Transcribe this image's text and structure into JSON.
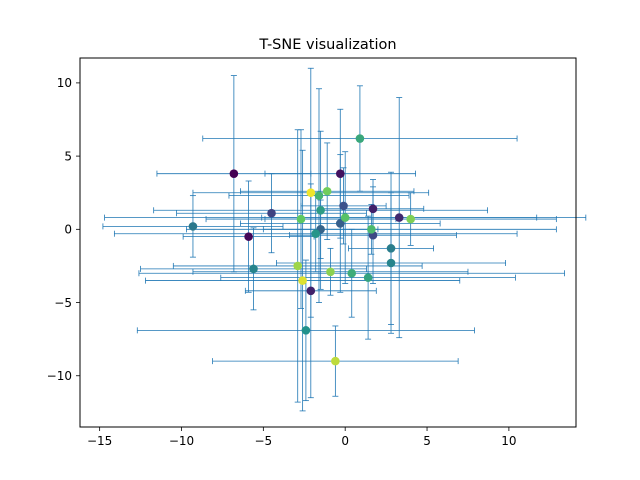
{
  "chart_data": {
    "type": "scatter",
    "title": "T-SNE visualization",
    "xlabel": "",
    "ylabel": "",
    "xlim": [
      -16.2,
      14.1
    ],
    "ylim": [
      -13.5,
      11.7
    ],
    "xticks": [
      -15,
      -10,
      -5,
      0,
      5,
      10
    ],
    "yticks": [
      -10,
      -5,
      0,
      5,
      10
    ],
    "grid": false,
    "legend": "none",
    "errorbar_color": "#1f77b4",
    "colormap": "viridis",
    "points": [
      {
        "x": -6.8,
        "y": 3.8,
        "xerr": 4.7,
        "yerr": 6.7,
        "c": 0.0
      },
      {
        "x": -5.9,
        "y": -0.5,
        "xerr": 4.0,
        "yerr": 3.8,
        "c": 0.02
      },
      {
        "x": -0.3,
        "y": 3.8,
        "xerr": 4.6,
        "yerr": 4.4,
        "c": 0.05
      },
      {
        "x": 1.7,
        "y": 1.4,
        "xerr": 3.1,
        "yerr": 2.0,
        "c": 0.1
      },
      {
        "x": -2.1,
        "y": -4.2,
        "xerr": 4.0,
        "yerr": 7.3,
        "c": 0.1
      },
      {
        "x": 3.3,
        "y": 0.8,
        "xerr": 8.4,
        "yerr": 8.2,
        "c": 0.12
      },
      {
        "x": -4.5,
        "y": 1.1,
        "xerr": 5.8,
        "yerr": 2.7,
        "c": 0.2
      },
      {
        "x": 1.7,
        "y": -0.4,
        "xerr": 5.1,
        "yerr": 3.3,
        "c": 0.22
      },
      {
        "x": -0.1,
        "y": 1.6,
        "xerr": 2.6,
        "yerr": 2.6,
        "c": 0.25
      },
      {
        "x": -0.3,
        "y": 0.4,
        "xerr": 6.1,
        "yerr": 4.7,
        "c": 0.3
      },
      {
        "x": -1.5,
        "y": 0.0,
        "xerr": 3.5,
        "yerr": 2.0,
        "c": 0.32
      },
      {
        "x": -9.3,
        "y": 0.2,
        "xerr": 5.5,
        "yerr": 2.1,
        "c": 0.4
      },
      {
        "x": 2.8,
        "y": -1.3,
        "xerr": 2.6,
        "yerr": 5.2,
        "c": 0.42
      },
      {
        "x": 2.8,
        "y": -2.3,
        "xerr": 7.0,
        "yerr": 4.8,
        "c": 0.45
      },
      {
        "x": -5.6,
        "y": -2.7,
        "xerr": 6.9,
        "yerr": 2.8,
        "c": 0.45
      },
      {
        "x": -2.4,
        "y": -6.9,
        "xerr": 10.3,
        "yerr": 4.8,
        "c": 0.5
      },
      {
        "x": -1.8,
        "y": -0.3,
        "xerr": 12.3,
        "yerr": 2.6,
        "c": 0.52
      },
      {
        "x": -1.5,
        "y": 1.3,
        "xerr": 10.2,
        "yerr": 5.4,
        "c": 0.55
      },
      {
        "x": 1.4,
        "y": -3.3,
        "xerr": 9.0,
        "yerr": 4.2,
        "c": 0.58
      },
      {
        "x": 0.9,
        "y": 6.2,
        "xerr": 9.6,
        "yerr": 3.6,
        "c": 0.6
      },
      {
        "x": 0.4,
        "y": -3.0,
        "xerr": 13.0,
        "yerr": 3.0,
        "c": 0.62
      },
      {
        "x": -1.6,
        "y": 2.3,
        "xerr": 5.5,
        "yerr": 7.3,
        "c": 0.65
      },
      {
        "x": 1.6,
        "y": 0.0,
        "xerr": 11.3,
        "yerr": 1.7,
        "c": 0.68
      },
      {
        "x": 0.0,
        "y": 0.8,
        "xerr": 14.7,
        "yerr": 4.5,
        "c": 0.72
      },
      {
        "x": -2.7,
        "y": 0.7,
        "xerr": 5.8,
        "yerr": 6.1,
        "c": 0.75
      },
      {
        "x": -1.1,
        "y": 2.6,
        "xerr": 5.3,
        "yerr": 3.3,
        "c": 0.78
      },
      {
        "x": 4.0,
        "y": 0.7,
        "xerr": 8.9,
        "yerr": 1.8,
        "c": 0.8
      },
      {
        "x": -0.9,
        "y": -2.9,
        "xerr": 8.4,
        "yerr": 1.6,
        "c": 0.82
      },
      {
        "x": -2.9,
        "y": -2.5,
        "xerr": 7.6,
        "yerr": 9.3,
        "c": 0.85
      },
      {
        "x": -0.6,
        "y": -9.0,
        "xerr": 7.5,
        "yerr": 2.4,
        "c": 0.9
      },
      {
        "x": -2.6,
        "y": -3.5,
        "xerr": 9.6,
        "yerr": 8.9,
        "c": 0.95
      },
      {
        "x": -2.1,
        "y": 2.5,
        "xerr": 7.2,
        "yerr": 8.5,
        "c": 0.98
      }
    ]
  }
}
